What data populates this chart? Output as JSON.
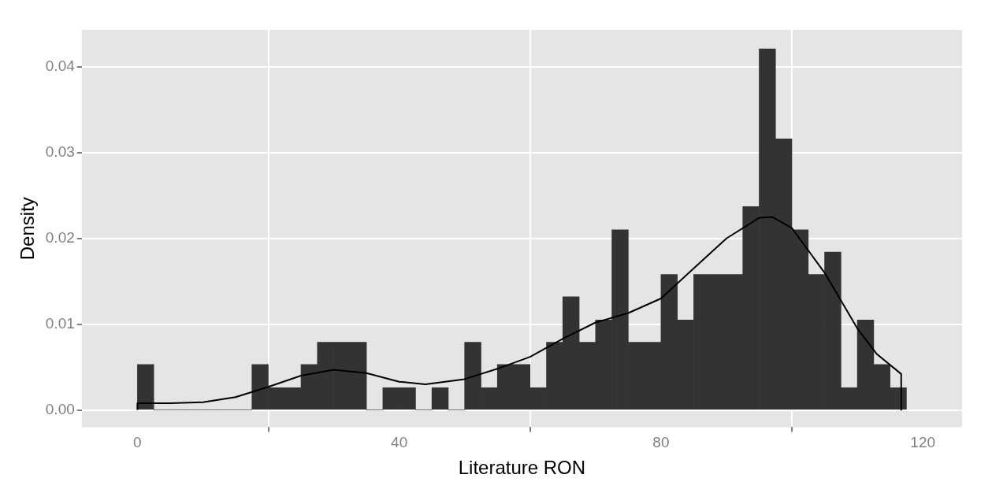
{
  "chart_data": {
    "type": "histogram",
    "xlabel": "Literature RON",
    "ylabel": "Density",
    "xlim": [
      -8.5,
      126
    ],
    "ylim": [
      -0.002,
      0.0443
    ],
    "xticks": [
      0,
      40,
      80,
      120
    ],
    "yticks": [
      {
        "value": 0,
        "label": "0.00"
      },
      0.01,
      0.02,
      0.03,
      0.04
    ],
    "grid": true,
    "series": [
      {
        "color": "#333333",
        "bins": [
          0,
          2.5,
          5,
          7.5,
          10,
          12.5,
          15,
          17.5,
          20,
          22.5,
          25,
          27.5,
          30,
          32.5,
          35,
          37.5,
          40,
          42.5,
          45,
          47.5,
          50,
          52.5,
          55,
          57.5,
          60,
          62.5,
          65,
          67.5,
          70,
          72.5,
          75,
          77.5,
          80,
          82.5,
          85,
          87.5,
          90,
          92.5,
          95,
          97.5,
          100,
          102.5,
          105,
          107.5,
          110,
          112.5,
          115,
          117.5
        ],
        "values": [
          0.0053,
          0,
          0,
          0,
          0,
          0,
          0,
          0.0053,
          0.0026,
          0.0026,
          0.0053,
          0.0079,
          0.0079,
          0.0079,
          0,
          0.0026,
          0.0026,
          0,
          0.0026,
          0,
          0.0079,
          0.0026,
          0.0053,
          0.0053,
          0.0026,
          0.0079,
          0.0132,
          0.0079,
          0.0105,
          0.021,
          0.0079,
          0.0079,
          0.0158,
          0.0105,
          0.0158,
          0.0158,
          0.0158,
          0.0237,
          0.0421,
          0.0316,
          0.021,
          0.0158,
          0.0184,
          0.0026,
          0.0105,
          0.0053,
          0.0026
        ]
      },
      {
        "type": "line",
        "color": "#000000",
        "x": [
          0,
          0,
          5,
          10,
          15,
          20,
          25,
          30,
          35,
          40,
          44,
          50,
          55,
          60,
          65,
          70,
          75,
          80,
          85,
          90,
          95,
          97,
          100,
          105,
          110,
          113,
          116.7,
          116.7
        ],
        "values": [
          0,
          0.0008,
          0.0008,
          0.0009,
          0.0015,
          0.0027,
          0.004,
          0.0047,
          0.0043,
          0.0033,
          0.003,
          0.0036,
          0.0048,
          0.0062,
          0.0083,
          0.0102,
          0.0113,
          0.013,
          0.0165,
          0.02,
          0.0224,
          0.0225,
          0.0212,
          0.016,
          0.0095,
          0.0065,
          0.0042,
          0
        ]
      }
    ]
  }
}
